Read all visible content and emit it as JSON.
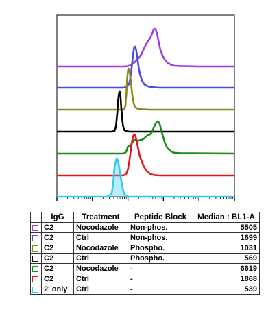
{
  "chart_data": {
    "type": "histogram-overlay",
    "x_scale": "log",
    "x_ticks_labeled": false,
    "y_ticks_labeled": false,
    "series": [
      {
        "name": "C2 Nocodazole Non-phos.",
        "color": "#9b3fe0",
        "median": 5505,
        "x": [
          20,
          300,
          500,
          800,
          1000,
          1150,
          1300,
          1500,
          1700,
          2000,
          2400,
          2800,
          3200,
          3700,
          4100,
          4500,
          4900,
          5300,
          5700,
          6100,
          6600,
          7000,
          7600,
          8200,
          9000,
          10000,
          11000,
          13000,
          16000,
          20000,
          30000,
          100000,
          1000000
        ],
        "y": [
          0,
          0,
          0,
          0,
          0.01,
          0.03,
          0.06,
          0.1,
          0.15,
          0.22,
          0.32,
          0.46,
          0.57,
          0.66,
          0.72,
          0.79,
          0.88,
          0.97,
          0.98,
          0.95,
          0.86,
          0.73,
          0.58,
          0.44,
          0.33,
          0.24,
          0.17,
          0.1,
          0.05,
          0.02,
          0.01,
          0,
          0
        ]
      },
      {
        "name": "C2 Ctrl Non-phos.",
        "color": "#4a4ae8",
        "median": 1699,
        "x": [
          20,
          300,
          500,
          750,
          900,
          1000,
          1100,
          1200,
          1300,
          1400,
          1500,
          1600,
          1700,
          1850,
          2000,
          2200,
          2500,
          2900,
          3500,
          4200,
          5500,
          8000,
          20000,
          1000000
        ],
        "y": [
          0,
          0,
          0,
          0,
          0.02,
          0.05,
          0.12,
          0.3,
          0.55,
          0.82,
          0.98,
          1.0,
          0.93,
          0.72,
          0.5,
          0.32,
          0.17,
          0.08,
          0.04,
          0.02,
          0.01,
          0,
          0,
          0
        ]
      },
      {
        "name": "C2 Nocodazole Phospho.",
        "color": "#888820",
        "median": 1031,
        "x": [
          20,
          500,
          700,
          800,
          850,
          900,
          950,
          1000,
          1050,
          1100,
          1150,
          1200,
          1250,
          1300,
          1400,
          1500,
          1600,
          1800,
          2000,
          2500,
          4000,
          1000000
        ],
        "y": [
          0,
          0,
          0,
          0.02,
          0.1,
          0.35,
          0.72,
          0.95,
          1.0,
          0.95,
          0.85,
          0.72,
          0.58,
          0.42,
          0.22,
          0.12,
          0.07,
          0.03,
          0.02,
          0.01,
          0,
          0
        ]
      },
      {
        "name": "C2 Ctrl Phospho.",
        "color": "#000000",
        "median": 569,
        "x": [
          20,
          350,
          420,
          460,
          500,
          530,
          560,
          590,
          620,
          650,
          690,
          730,
          780,
          850,
          950,
          1100,
          1400,
          1000000
        ],
        "y": [
          0,
          0,
          0.02,
          0.12,
          0.45,
          0.78,
          0.98,
          1.0,
          0.88,
          0.6,
          0.32,
          0.14,
          0.05,
          0.02,
          0.01,
          0,
          0,
          0
        ]
      },
      {
        "name": "C2 Nocodazole -",
        "color": "#1a8a1a",
        "median": 6619,
        "x": [
          20,
          500,
          700,
          800,
          900,
          1000,
          1100,
          1200,
          1300,
          1500,
          1700,
          1900,
          2200,
          2500,
          2900,
          3300,
          3700,
          4200,
          4700,
          5200,
          5800,
          6400,
          7000,
          7800,
          8600,
          9500,
          11000,
          13000,
          16000,
          20000,
          30000,
          1000000
        ],
        "y": [
          0,
          0,
          0,
          0.01,
          0.05,
          0.18,
          0.2,
          0.22,
          0.28,
          0.35,
          0.36,
          0.33,
          0.35,
          0.36,
          0.4,
          0.45,
          0.48,
          0.5,
          0.55,
          0.65,
          0.75,
          0.82,
          0.84,
          0.78,
          0.62,
          0.48,
          0.28,
          0.14,
          0.06,
          0.02,
          0.01,
          0
        ]
      },
      {
        "name": "C2 Ctrl -",
        "color": "#e01818",
        "median": 1868,
        "x": [
          20,
          500,
          700,
          800,
          900,
          1000,
          1100,
          1200,
          1300,
          1400,
          1500,
          1600,
          1700,
          1800,
          2000,
          2200,
          2500,
          2800,
          3200,
          3800,
          4500,
          5500,
          8000,
          1000000
        ],
        "y": [
          0,
          0,
          0,
          0.01,
          0.04,
          0.15,
          0.35,
          0.6,
          0.82,
          0.95,
          1.0,
          0.98,
          0.9,
          0.8,
          0.6,
          0.45,
          0.32,
          0.22,
          0.13,
          0.07,
          0.03,
          0.01,
          0,
          0
        ]
      },
      {
        "name": "2' only Ctrl",
        "color": "#33ccee",
        "median": 539,
        "x": [
          20,
          250,
          300,
          350,
          380,
          400,
          420,
          450,
          480,
          520,
          560,
          600,
          650,
          700,
          760,
          820,
          900,
          1000,
          1000000
        ],
        "y": [
          0,
          0,
          0.02,
          0.1,
          0.3,
          0.55,
          0.78,
          0.9,
          1.0,
          0.95,
          0.8,
          0.62,
          0.42,
          0.25,
          0.12,
          0.05,
          0.02,
          0,
          0
        ]
      }
    ]
  },
  "legend_table": {
    "headers": {
      "igg": "IgG",
      "treatment": "Treatment",
      "peptide": "Peptide Block",
      "median": "Median : BL1-A"
    },
    "rows": [
      {
        "color": "#9b3fe0",
        "igg": "C2",
        "treatment": "Nocodazole",
        "peptide": "Non-phos.",
        "median": "5505"
      },
      {
        "color": "#4a4ae8",
        "igg": "C2",
        "treatment": "Ctrl",
        "peptide": "Non-phos.",
        "median": "1699"
      },
      {
        "color": "#888820",
        "igg": "C2",
        "treatment": "Nocodazole",
        "peptide": "Phospho.",
        "median": "1031"
      },
      {
        "color": "#000000",
        "igg": "C2",
        "treatment": "Ctrl",
        "peptide": "Phospho.",
        "median": "569"
      },
      {
        "color": "#1a8a1a",
        "igg": "C2",
        "treatment": "Nocodazole",
        "peptide": "-",
        "median": "6619"
      },
      {
        "color": "#e01818",
        "igg": "C2",
        "treatment": "Ctrl",
        "peptide": "-",
        "median": "1868"
      },
      {
        "color": "#33ccee",
        "igg": "2' only",
        "treatment": "Ctrl",
        "peptide": "-",
        "median": "539"
      }
    ]
  }
}
